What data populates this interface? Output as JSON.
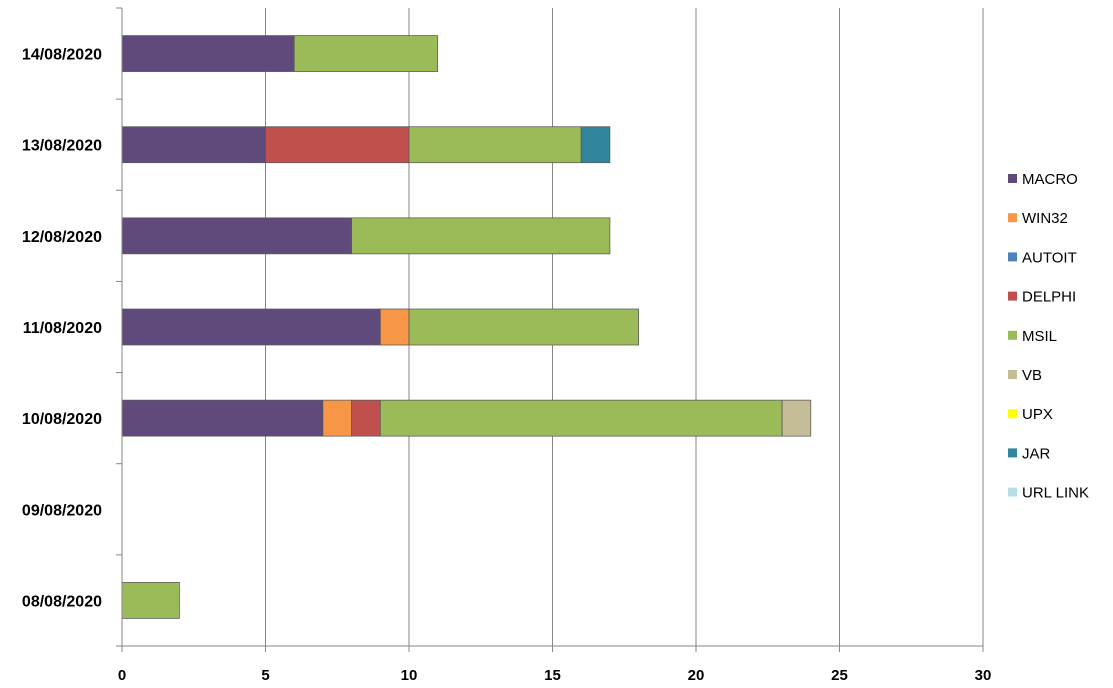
{
  "chart_data": {
    "type": "bar",
    "orientation": "horizontal",
    "stacked": true,
    "categories": [
      "08/08/2020",
      "09/08/2020",
      "10/08/2020",
      "11/08/2020",
      "12/08/2020",
      "13/08/2020",
      "14/08/2020"
    ],
    "series": [
      {
        "name": "MACRO",
        "color": "#604a7b",
        "values": [
          0,
          0,
          7,
          9,
          8,
          5,
          6
        ]
      },
      {
        "name": "WIN32",
        "color": "#f79646",
        "values": [
          0,
          0,
          1,
          1,
          0,
          0,
          0
        ]
      },
      {
        "name": "AUTOIT",
        "color": "#4f81bd",
        "values": [
          0,
          0,
          0,
          0,
          0,
          0,
          0
        ]
      },
      {
        "name": "DELPHI",
        "color": "#c0504d",
        "values": [
          0,
          0,
          1,
          0,
          0,
          5,
          0
        ]
      },
      {
        "name": "MSIL",
        "color": "#9bbb59",
        "values": [
          2,
          0,
          14,
          8,
          9,
          6,
          5
        ]
      },
      {
        "name": "VB",
        "color": "#c4bd97",
        "values": [
          0,
          0,
          1,
          0,
          0,
          0,
          0
        ]
      },
      {
        "name": "UPX",
        "color": "#ffff00",
        "values": [
          0,
          0,
          0,
          0,
          0,
          0,
          0
        ]
      },
      {
        "name": "JAR",
        "color": "#31859c",
        "values": [
          0,
          0,
          0,
          0,
          0,
          1,
          0
        ]
      },
      {
        "name": "URL LINK",
        "color": "#b7dee8",
        "values": [
          0,
          0,
          0,
          0,
          0,
          0,
          0
        ]
      }
    ],
    "xlim": [
      0,
      30
    ],
    "xticks": [
      0,
      5,
      10,
      15,
      20,
      25,
      30
    ],
    "grid": true,
    "legend": "right",
    "title": "",
    "xlabel": "",
    "ylabel": ""
  }
}
